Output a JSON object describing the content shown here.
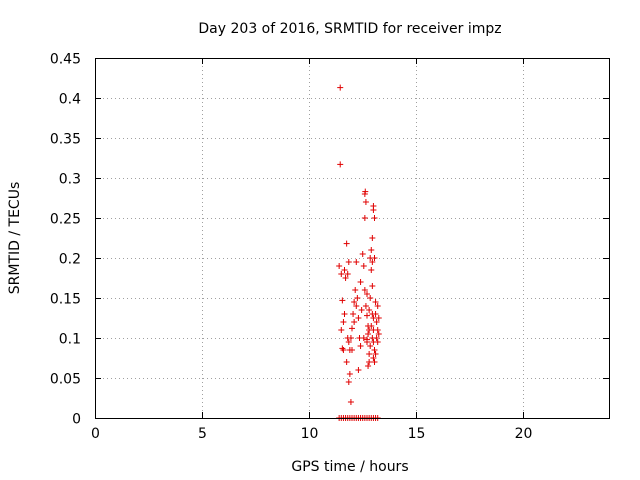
{
  "chart_data": {
    "type": "scatter",
    "title": "Day 203 of 2016, SRMTID for receiver impz",
    "xlabel": "GPS time / hours",
    "ylabel": "SRMTID / TECUs",
    "xlim": [
      0,
      24
    ],
    "ylim": [
      0,
      0.45
    ],
    "xticks": [
      0,
      5,
      10,
      15,
      20
    ],
    "xtick_labels": [
      "0",
      "5",
      "10",
      "15",
      "20"
    ],
    "yticks": [
      0,
      0.05,
      0.1,
      0.15,
      0.2,
      0.25,
      0.3,
      0.35,
      0.4,
      0.45
    ],
    "ytick_labels": [
      "0",
      "0.05",
      "0.1",
      "0.15",
      "0.2",
      "0.25",
      "0.3",
      "0.35",
      "0.4",
      "0.45"
    ],
    "grid": true,
    "marker": "+",
    "color": "#e00000",
    "series": [
      {
        "name": "SRMTID",
        "points": [
          [
            11.45,
            0.413
          ],
          [
            11.45,
            0.317
          ],
          [
            11.4,
            0.19
          ],
          [
            11.5,
            0.18
          ],
          [
            11.55,
            0.147
          ],
          [
            11.6,
            0.12
          ],
          [
            11.5,
            0.11
          ],
          [
            11.55,
            0.087
          ],
          [
            11.6,
            0.085
          ],
          [
            11.65,
            0.13
          ],
          [
            11.7,
            0.175
          ],
          [
            11.75,
            0.218
          ],
          [
            11.8,
            0.18
          ],
          [
            11.85,
            0.195
          ],
          [
            11.8,
            0.1
          ],
          [
            11.85,
            0.095
          ],
          [
            11.75,
            0.07
          ],
          [
            11.9,
            0.085
          ],
          [
            11.85,
            0.045
          ],
          [
            11.9,
            0.055
          ],
          [
            11.95,
            0.02
          ],
          [
            12.0,
            0.112
          ],
          [
            12.05,
            0.13
          ],
          [
            12.1,
            0.145
          ],
          [
            12.15,
            0.16
          ],
          [
            12.2,
            0.195
          ],
          [
            12.25,
            0.15
          ],
          [
            12.3,
            0.125
          ],
          [
            12.35,
            0.1
          ],
          [
            12.4,
            0.09
          ],
          [
            12.3,
            0.06
          ],
          [
            12.45,
            0.135
          ],
          [
            12.5,
            0.205
          ],
          [
            12.6,
            0.28
          ],
          [
            12.62,
            0.283
          ],
          [
            12.65,
            0.27
          ],
          [
            12.6,
            0.25
          ],
          [
            12.55,
            0.19
          ],
          [
            12.6,
            0.16
          ],
          [
            12.7,
            0.155
          ],
          [
            12.65,
            0.14
          ],
          [
            12.7,
            0.128
          ],
          [
            12.75,
            0.105
          ],
          [
            12.7,
            0.095
          ],
          [
            12.8,
            0.08
          ],
          [
            12.75,
            0.065
          ],
          [
            12.8,
            0.11
          ],
          [
            12.85,
            0.2
          ],
          [
            12.9,
            0.21
          ],
          [
            12.95,
            0.195
          ],
          [
            12.9,
            0.185
          ],
          [
            12.95,
            0.165
          ],
          [
            12.85,
            0.15
          ],
          [
            12.95,
            0.13
          ],
          [
            13.0,
            0.125
          ],
          [
            12.9,
            0.115
          ],
          [
            13.0,
            0.11
          ],
          [
            12.95,
            0.1
          ],
          [
            13.0,
            0.095
          ],
          [
            13.05,
            0.085
          ],
          [
            13.0,
            0.075
          ],
          [
            12.95,
            0.225
          ],
          [
            13.0,
            0.265
          ],
          [
            13.0,
            0.26
          ],
          [
            13.05,
            0.25
          ],
          [
            13.05,
            0.2
          ],
          [
            13.1,
            0.145
          ],
          [
            13.1,
            0.13
          ],
          [
            13.15,
            0.12
          ],
          [
            13.2,
            0.14
          ],
          [
            13.2,
            0.11
          ],
          [
            13.15,
            0.1
          ],
          [
            13.2,
            0.095
          ],
          [
            13.25,
            0.125
          ],
          [
            13.25,
            0.105
          ],
          [
            13.1,
            0.08
          ],
          [
            12.0,
            0.085
          ],
          [
            11.95,
            0.1
          ],
          [
            12.1,
            0.12
          ],
          [
            12.2,
            0.14
          ],
          [
            12.4,
            0.17
          ],
          [
            12.55,
            0.1
          ],
          [
            12.8,
            0.07
          ],
          [
            12.85,
            0.09
          ],
          [
            13.05,
            0.07
          ],
          [
            12.8,
            0.135
          ],
          [
            12.75,
            0.115
          ],
          [
            12.7,
            0.098
          ],
          [
            11.65,
            0.185
          ],
          [
            11.4,
            0.0
          ],
          [
            11.5,
            0.0
          ],
          [
            11.6,
            0.0
          ],
          [
            11.7,
            0.0
          ],
          [
            11.8,
            0.0
          ],
          [
            11.9,
            0.0
          ],
          [
            12.0,
            0.0
          ],
          [
            12.1,
            0.0
          ],
          [
            12.2,
            0.0
          ],
          [
            12.3,
            0.0
          ],
          [
            12.4,
            0.0
          ],
          [
            12.5,
            0.0
          ],
          [
            12.6,
            0.0
          ],
          [
            12.7,
            0.0
          ],
          [
            12.8,
            0.0
          ],
          [
            12.9,
            0.0
          ],
          [
            13.0,
            0.0
          ],
          [
            13.1,
            0.0
          ],
          [
            13.2,
            0.0
          ]
        ]
      }
    ]
  }
}
